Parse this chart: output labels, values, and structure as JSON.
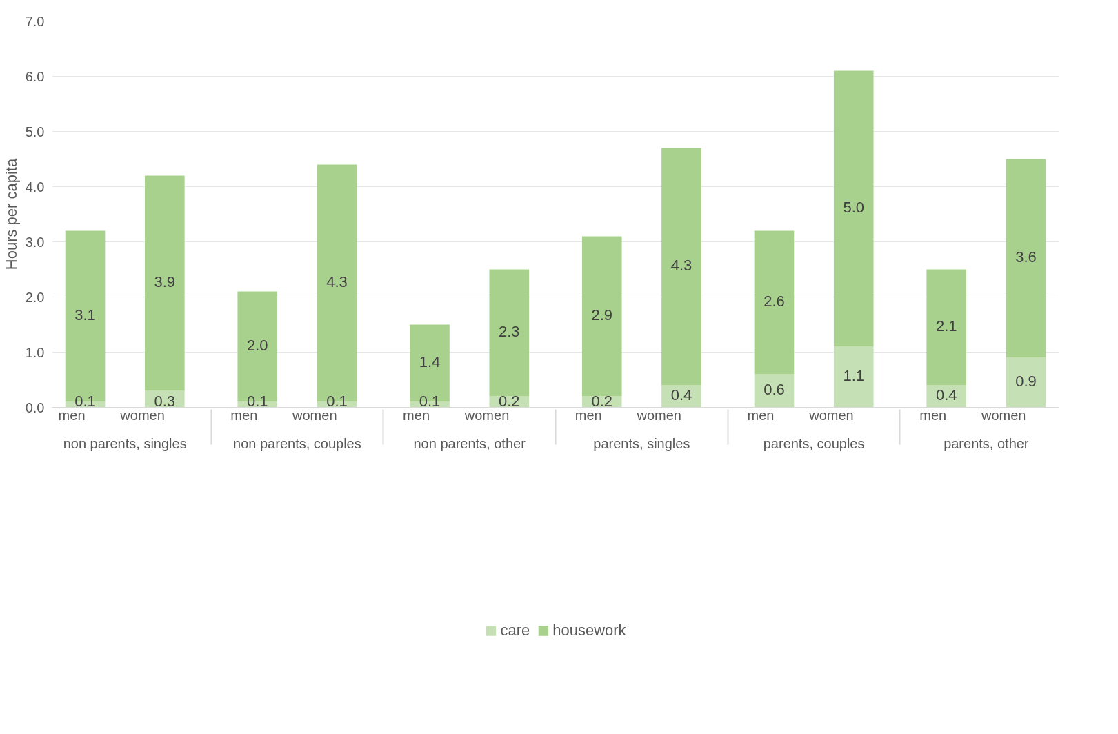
{
  "chart_data": {
    "type": "bar",
    "stacked": true,
    "ylabel": "Hours per capita",
    "categories": [
      [
        "non parents, singles",
        "men"
      ],
      [
        null,
        "women"
      ],
      [
        "non parents, couples",
        "men"
      ],
      [
        null,
        "women"
      ],
      [
        "non parents, other",
        "men"
      ],
      [
        null,
        "women"
      ],
      [
        "parents, singles",
        "men"
      ],
      [
        null,
        "women"
      ],
      [
        "parents, couples",
        "men"
      ],
      [
        null,
        "women"
      ],
      [
        "parents, other",
        "men"
      ],
      [
        null,
        "women"
      ]
    ],
    "series": [
      {
        "name": "care",
        "color": "#c5e0b4",
        "values": [
          0.1,
          0.3,
          0.1,
          0.1,
          0.1,
          0.2,
          0.2,
          0.4,
          0.6,
          1.1,
          0.4,
          0.9
        ],
        "value_labels": [
          "0.1",
          "0.3",
          "0.1",
          "0.1",
          "0.1",
          "0.2",
          "0.2",
          "0.4",
          "0.6",
          "1.1",
          "0.4",
          "0.9"
        ]
      },
      {
        "name": "housework",
        "color": "#a9d18e",
        "values": [
          3.1,
          3.9,
          2.0,
          4.3,
          1.4,
          2.3,
          2.9,
          4.3,
          2.6,
          5.0,
          2.1,
          3.6
        ],
        "value_labels": [
          "3.1",
          "3.9",
          "2.0",
          "4.3",
          "1.4",
          "2.3",
          "2.9",
          "4.3",
          "2.6",
          "5.0",
          "2.1",
          "3.6"
        ]
      }
    ],
    "ylim": [
      0,
      7
    ],
    "yticks": [
      {
        "value": 0,
        "label": "0.0"
      },
      {
        "value": 1,
        "label": "1.0"
      },
      {
        "value": 2,
        "label": "2.0"
      },
      {
        "value": 3,
        "label": "3.0"
      },
      {
        "value": 4,
        "label": "4.0"
      },
      {
        "value": 5,
        "label": "5.0"
      },
      {
        "value": 6,
        "label": "6.0"
      },
      {
        "value": 7,
        "label": "7.0"
      }
    ],
    "grid": "y",
    "legend": "bottom",
    "data_labels": true
  }
}
